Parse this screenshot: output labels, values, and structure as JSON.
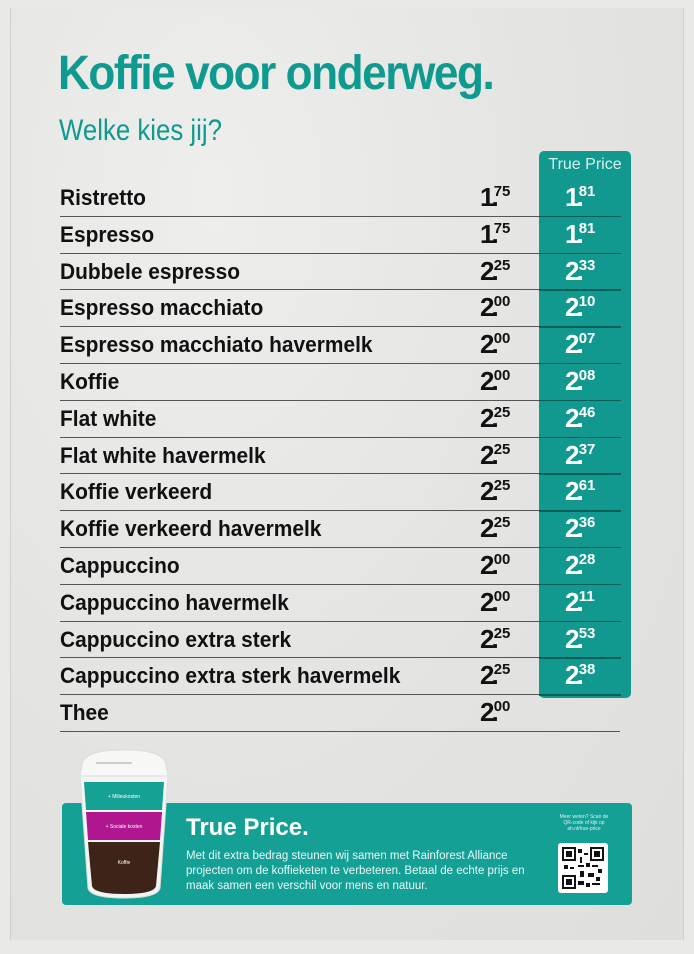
{
  "header": {
    "title": "Koffie voor onderweg.",
    "subtitle": "Welke kies jij?"
  },
  "menu": {
    "true_price_header": "True Price",
    "items": [
      {
        "name": "Ristretto",
        "price_int": "1",
        "price_dec": "75",
        "true_int": "1",
        "true_dec": "81"
      },
      {
        "name": "Espresso",
        "price_int": "1",
        "price_dec": "75",
        "true_int": "1",
        "true_dec": "81"
      },
      {
        "name": "Dubbele espresso",
        "price_int": "2",
        "price_dec": "25",
        "true_int": "2",
        "true_dec": "33"
      },
      {
        "name": "Espresso macchiato",
        "price_int": "2",
        "price_dec": "00",
        "true_int": "2",
        "true_dec": "10"
      },
      {
        "name": "Espresso macchiato havermelk",
        "price_int": "2",
        "price_dec": "00",
        "true_int": "2",
        "true_dec": "07"
      },
      {
        "name": "Koffie",
        "price_int": "2",
        "price_dec": "00",
        "true_int": "2",
        "true_dec": "08"
      },
      {
        "name": "Flat white",
        "price_int": "2",
        "price_dec": "25",
        "true_int": "2",
        "true_dec": "46"
      },
      {
        "name": "Flat white havermelk",
        "price_int": "2",
        "price_dec": "25",
        "true_int": "2",
        "true_dec": "37"
      },
      {
        "name": "Koffie verkeerd",
        "price_int": "2",
        "price_dec": "25",
        "true_int": "2",
        "true_dec": "61"
      },
      {
        "name": "Koffie verkeerd havermelk",
        "price_int": "2",
        "price_dec": "25",
        "true_int": "2",
        "true_dec": "36"
      },
      {
        "name": "Cappuccino",
        "price_int": "2",
        "price_dec": "00",
        "true_int": "2",
        "true_dec": "28"
      },
      {
        "name": "Cappuccino havermelk",
        "price_int": "2",
        "price_dec": "00",
        "true_int": "2",
        "true_dec": "11"
      },
      {
        "name": "Cappuccino extra sterk",
        "price_int": "2",
        "price_dec": "25",
        "true_int": "2",
        "true_dec": "53"
      },
      {
        "name": "Cappuccino extra sterk havermelk",
        "price_int": "2",
        "price_dec": "25",
        "true_int": "2",
        "true_dec": "38"
      },
      {
        "name": "Thee",
        "price_int": "2",
        "price_dec": "00",
        "true_int": null,
        "true_dec": null
      }
    ]
  },
  "cup": {
    "layer_top": "+ Milieukosten",
    "layer_mid": "+ Sociale kosten",
    "layer_bottom": "Koffie",
    "colors": {
      "top": "#16a195",
      "mid": "#b0168f",
      "bottom": "#3e2418"
    }
  },
  "banner": {
    "title": "True Price.",
    "text": "Met dit extra bedrag steunen wij samen met Rainforest Alliance projecten om de koffieketen te verbeteren. Betaal de echte prijs en maak samen een verschil voor mens en natuur.",
    "qr_caption": "Meer weten? Scan de QR-code of kijk op ah.nl/true-price"
  },
  "colors": {
    "accent": "#0f9a8f",
    "true_price_column": "#12998f",
    "text": "#111111"
  }
}
